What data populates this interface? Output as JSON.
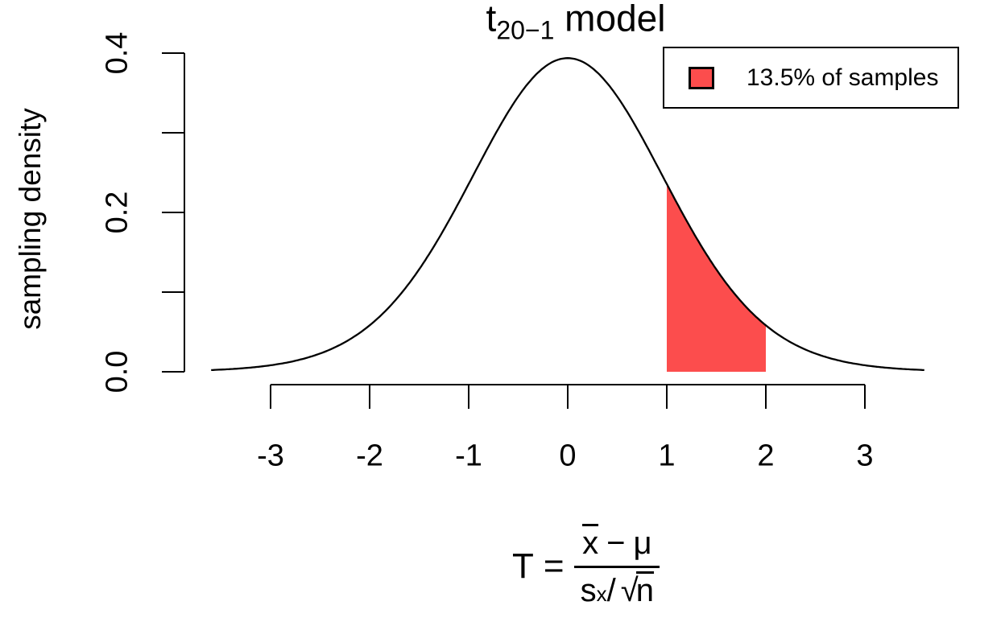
{
  "title": {
    "base": "t",
    "subscript": "20−1",
    "rest": " model"
  },
  "y_axis": {
    "label": "sampling density",
    "tick_labels": [
      "0.0",
      "0.2",
      "0.4"
    ]
  },
  "x_axis": {
    "tick_labels": [
      "-3",
      "-2",
      "-1",
      "0",
      "1",
      "2",
      "3"
    ]
  },
  "legend": {
    "label": "13.5% of samples"
  },
  "formula": {
    "lhs": "T",
    "eq": "=",
    "num_x": "x",
    "num_minus": "−",
    "num_mu": "μ",
    "den_s": "s",
    "den_sub": "x",
    "den_slash": "/",
    "den_radical": "√",
    "den_arg": "n"
  },
  "colors": {
    "accent_red": "#FC4D4D",
    "axis": "#000000",
    "background": "#FFFFFF"
  },
  "chart_data": {
    "type": "area",
    "title": "t(20−1) model",
    "distribution": "Student t",
    "df": 19,
    "xlabel": "T = (x̄ − μ) / (sₓ/√n)",
    "ylabel": "sampling density",
    "xlim": [
      -3.6,
      3.6
    ],
    "ylim": [
      0,
      0.4
    ],
    "x_ticks": [
      -3,
      -2,
      -1,
      0,
      1,
      2,
      3
    ],
    "y_ticks": [
      0,
      0.1,
      0.2,
      0.3,
      0.4
    ],
    "y_labeled_ticks": [
      0,
      0.2,
      0.4
    ],
    "grid": false,
    "legend_position": "top-right",
    "shaded_region": {
      "from": 1,
      "to": 2,
      "fraction": 0.135,
      "label": "13.5% of samples",
      "color": "#FC4D4D"
    },
    "curve_points": {
      "x": [
        -3.6,
        -3.5,
        -3.25,
        -3.0,
        -2.75,
        -2.5,
        -2.25,
        -2.0,
        -1.75,
        -1.5,
        -1.25,
        -1.0,
        -0.75,
        -0.5,
        -0.25,
        0,
        0.25,
        0.5,
        0.75,
        1.0,
        1.25,
        1.5,
        1.75,
        2.0,
        2.25,
        2.5,
        2.75,
        3.0,
        3.25,
        3.5,
        3.6
      ],
      "y": [
        0.0022,
        0.0027,
        0.0047,
        0.0082,
        0.0138,
        0.0229,
        0.0371,
        0.0582,
        0.0883,
        0.1286,
        0.1786,
        0.2357,
        0.2941,
        0.3455,
        0.381,
        0.3937,
        0.381,
        0.3455,
        0.2941,
        0.2357,
        0.1786,
        0.1286,
        0.0883,
        0.0582,
        0.0371,
        0.0229,
        0.0138,
        0.0082,
        0.0047,
        0.0027,
        0.0022
      ]
    }
  }
}
